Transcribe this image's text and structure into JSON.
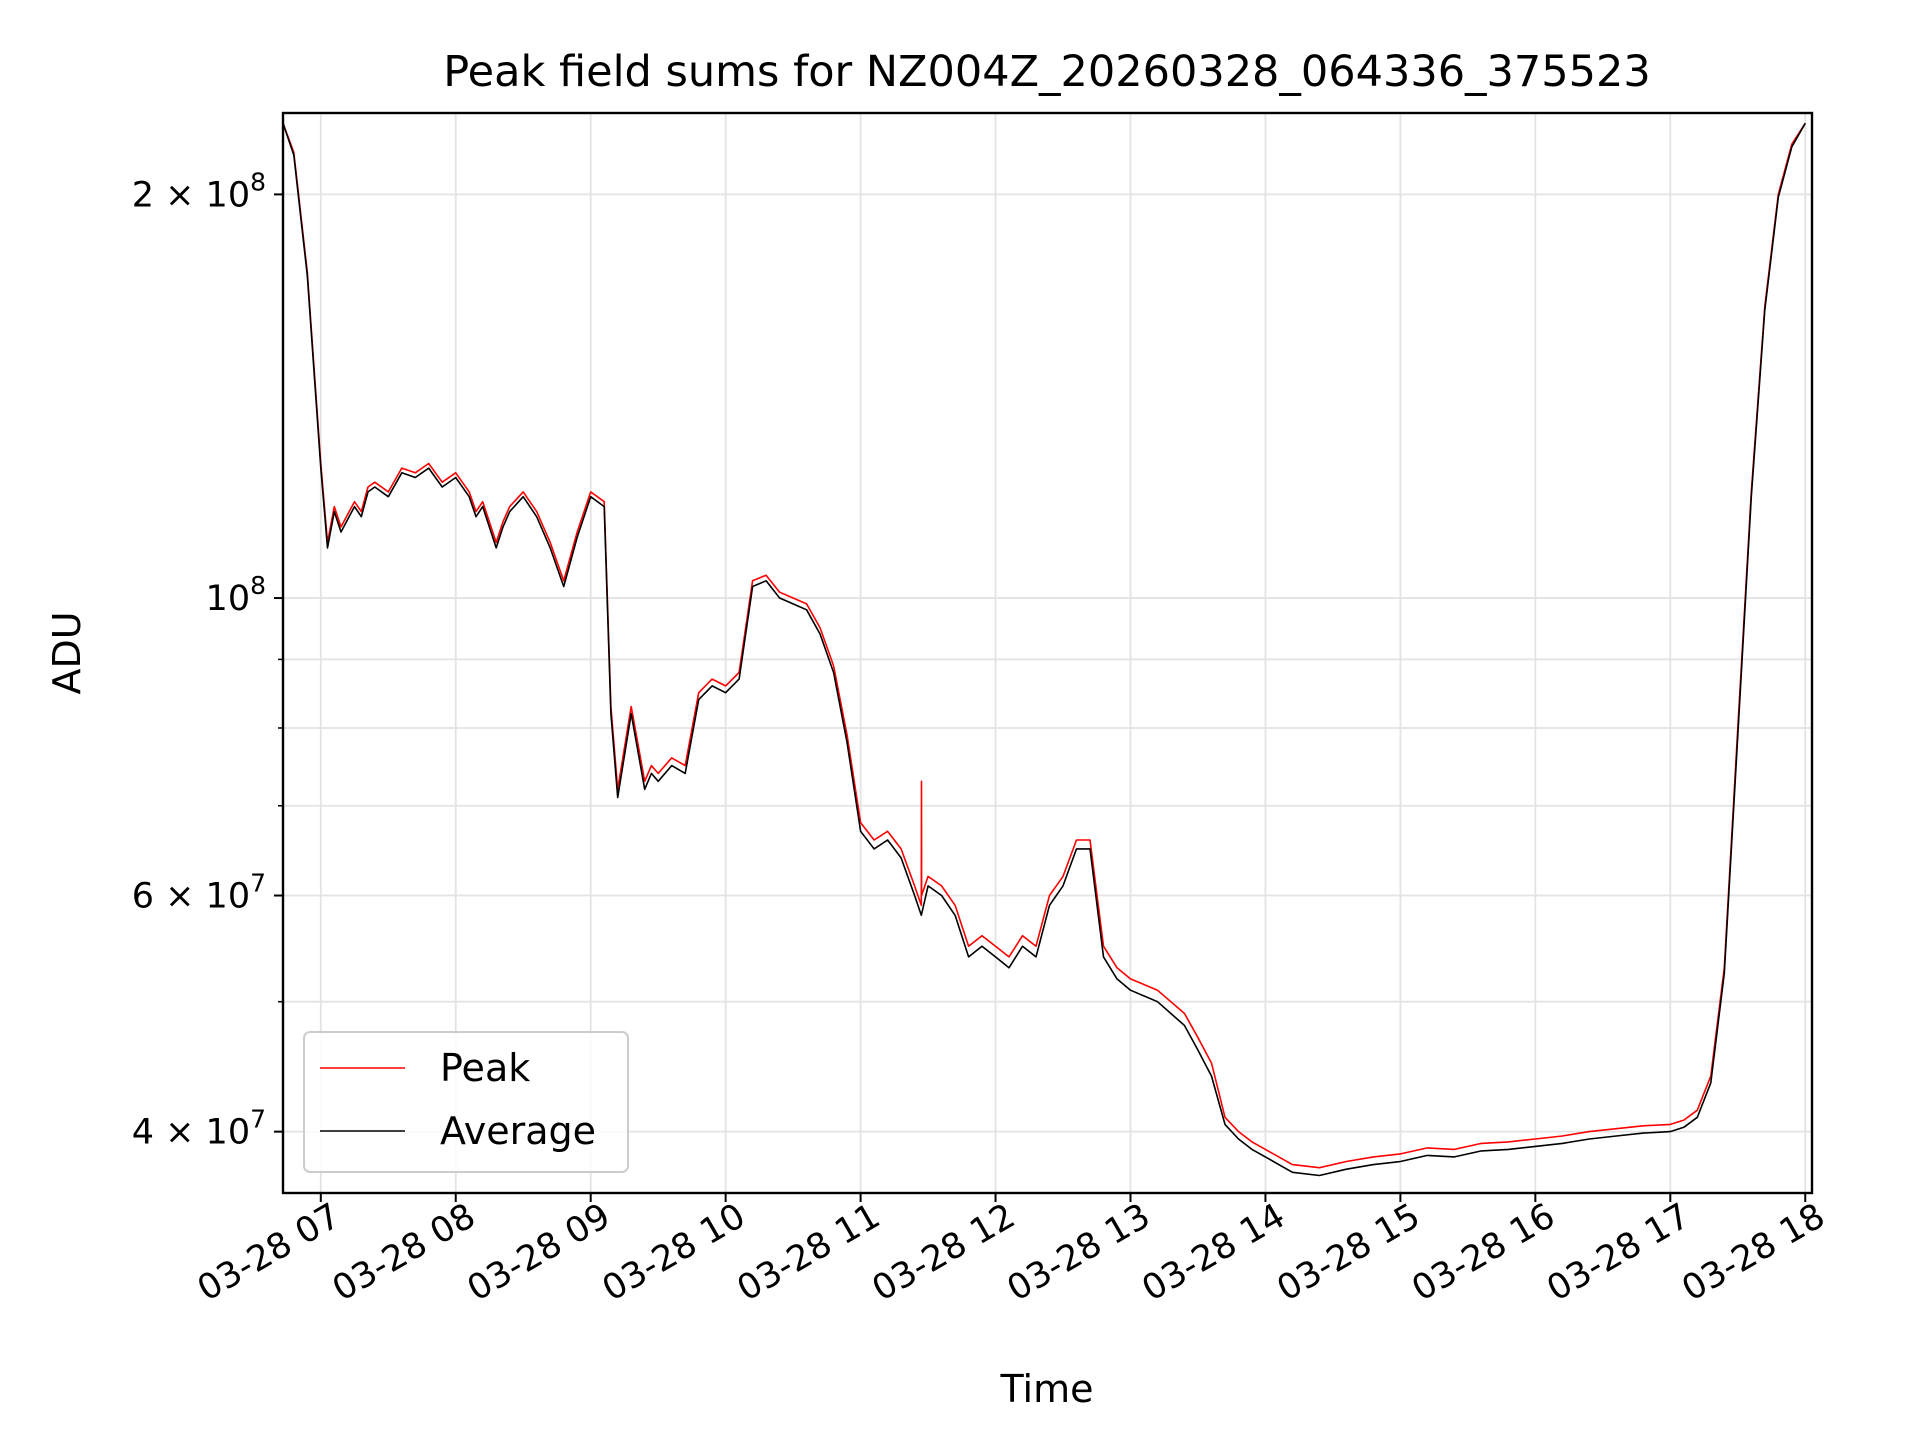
{
  "chart_data": {
    "type": "line",
    "title": "Peak field sums for NZ004Z_20260328_064336_375523",
    "xlabel": "Time",
    "ylabel": "ADU",
    "yscale": "log",
    "grid": true,
    "legend_position": "lower-left",
    "x_unit": "hours since 03-28 00:00",
    "xlim": [
      6.72,
      18.05
    ],
    "ylim": [
      36000000,
      230000000
    ],
    "x_ticks": [
      {
        "value": 7,
        "label": "03-28 07"
      },
      {
        "value": 8,
        "label": "03-28 08"
      },
      {
        "value": 9,
        "label": "03-28 09"
      },
      {
        "value": 10,
        "label": "03-28 10"
      },
      {
        "value": 11,
        "label": "03-28 11"
      },
      {
        "value": 12,
        "label": "03-28 12"
      },
      {
        "value": 13,
        "label": "03-28 13"
      },
      {
        "value": 14,
        "label": "03-28 14"
      },
      {
        "value": 15,
        "label": "03-28 15"
      },
      {
        "value": 16,
        "label": "03-28 16"
      },
      {
        "value": 17,
        "label": "03-28 17"
      },
      {
        "value": 18,
        "label": "03-28 18"
      }
    ],
    "y_major_ticks": [
      {
        "value": 200000000,
        "mantissa": "2",
        "exponent": "8"
      },
      {
        "value": 100000000,
        "mantissa": "",
        "exponent": "8"
      },
      {
        "value": 60000000,
        "mantissa": "6",
        "exponent": "7"
      },
      {
        "value": 40000000,
        "mantissa": "4",
        "exponent": "7"
      }
    ],
    "y_minor_ticks": [
      50000000,
      70000000,
      80000000,
      90000000
    ],
    "series": [
      {
        "name": "Peak",
        "color": "#ff0000",
        "x": [
          6.72,
          6.8,
          6.9,
          7.0,
          7.05,
          7.1,
          7.15,
          7.25,
          7.3,
          7.35,
          7.4,
          7.5,
          7.6,
          7.7,
          7.75,
          7.8,
          7.9,
          8.0,
          8.1,
          8.15,
          8.2,
          8.3,
          8.35,
          8.4,
          8.5,
          8.6,
          8.7,
          8.8,
          8.9,
          9.0,
          9.1,
          9.15,
          9.2,
          9.3,
          9.4,
          9.45,
          9.5,
          9.6,
          9.7,
          9.8,
          9.9,
          10.0,
          10.1,
          10.2,
          10.3,
          10.4,
          10.5,
          10.6,
          10.7,
          10.8,
          10.9,
          11.0,
          11.1,
          11.2,
          11.3,
          11.4,
          11.45,
          11.451,
          11.452,
          11.5,
          11.6,
          11.7,
          11.8,
          11.9,
          12.0,
          12.1,
          12.2,
          12.3,
          12.4,
          12.5,
          12.6,
          12.7,
          12.8,
          12.9,
          13.0,
          13.2,
          13.4,
          13.5,
          13.6,
          13.7,
          13.8,
          13.9,
          14.0,
          14.2,
          14.4,
          14.6,
          14.8,
          15.0,
          15.2,
          15.4,
          15.6,
          15.8,
          16.0,
          16.2,
          16.4,
          16.6,
          16.8,
          17.0,
          17.1,
          17.2,
          17.3,
          17.4,
          17.5,
          17.6,
          17.7,
          17.8,
          17.9,
          18.0
        ],
        "y": [
          226000000,
          215000000,
          175000000,
          126000000,
          110000000,
          117000000,
          113000000,
          118000000,
          116000000,
          121000000,
          122000000,
          120000000,
          125000000,
          124000000,
          125000000,
          126000000,
          122000000,
          124000000,
          120000000,
          116000000,
          118000000,
          110000000,
          114000000,
          117000000,
          120000000,
          116000000,
          110000000,
          103000000,
          112000000,
          120000000,
          118000000,
          83000000,
          72000000,
          83000000,
          73000000,
          75000000,
          74000000,
          76000000,
          75000000,
          85000000,
          87000000,
          86000000,
          88000000,
          103000000,
          104000000,
          101000000,
          100000000,
          99000000,
          95000000,
          89000000,
          79000000,
          68000000,
          66000000,
          67000000,
          65000000,
          61000000,
          59000000,
          73000000,
          60000000,
          62000000,
          61000000,
          59000000,
          55000000,
          56000000,
          55000000,
          54000000,
          56000000,
          55000000,
          60000000,
          62000000,
          66000000,
          66000000,
          55000000,
          53000000,
          52000000,
          51000000,
          49000000,
          47000000,
          45000000,
          41000000,
          40000000,
          39300000,
          38800000,
          37800000,
          37600000,
          38000000,
          38300000,
          38500000,
          38900000,
          38800000,
          39200000,
          39300000,
          39500000,
          39700000,
          40000000,
          40200000,
          40400000,
          40500000,
          40800000,
          41500000,
          44000000,
          53000000,
          80000000,
          120000000,
          165000000,
          200000000,
          218000000,
          226000000
        ]
      },
      {
        "name": "Average",
        "color": "#000000",
        "x": [
          6.72,
          6.8,
          6.9,
          7.0,
          7.05,
          7.1,
          7.15,
          7.25,
          7.3,
          7.35,
          7.4,
          7.5,
          7.6,
          7.7,
          7.75,
          7.8,
          7.9,
          8.0,
          8.1,
          8.15,
          8.2,
          8.3,
          8.35,
          8.4,
          8.5,
          8.6,
          8.7,
          8.8,
          8.9,
          9.0,
          9.1,
          9.15,
          9.2,
          9.3,
          9.4,
          9.45,
          9.5,
          9.6,
          9.7,
          9.8,
          9.9,
          10.0,
          10.1,
          10.2,
          10.3,
          10.4,
          10.5,
          10.6,
          10.7,
          10.8,
          10.9,
          11.0,
          11.1,
          11.2,
          11.3,
          11.4,
          11.45,
          11.5,
          11.6,
          11.7,
          11.8,
          11.9,
          12.0,
          12.1,
          12.2,
          12.3,
          12.4,
          12.5,
          12.6,
          12.7,
          12.8,
          12.9,
          13.0,
          13.2,
          13.4,
          13.5,
          13.6,
          13.7,
          13.8,
          13.9,
          14.0,
          14.2,
          14.4,
          14.6,
          14.8,
          15.0,
          15.2,
          15.4,
          15.6,
          15.8,
          16.0,
          16.2,
          16.4,
          16.6,
          16.8,
          17.0,
          17.1,
          17.2,
          17.3,
          17.4,
          17.5,
          17.6,
          17.7,
          17.8,
          17.9,
          18.0
        ],
        "y": [
          226000000,
          214000000,
          174000000,
          125000000,
          109000000,
          116000000,
          112000000,
          117000000,
          115000000,
          120000000,
          121000000,
          119000000,
          124000000,
          123000000,
          124000000,
          125000000,
          121000000,
          123000000,
          119000000,
          115000000,
          117000000,
          109000000,
          113000000,
          116000000,
          119000000,
          115000000,
          109000000,
          102000000,
          111000000,
          119000000,
          117000000,
          82000000,
          71000000,
          82000000,
          72000000,
          74000000,
          73000000,
          75000000,
          74000000,
          84000000,
          86000000,
          85000000,
          87000000,
          102000000,
          103000000,
          100000000,
          99000000,
          98000000,
          94000000,
          88000000,
          78000000,
          67000000,
          65000000,
          66000000,
          64000000,
          60000000,
          58000000,
          61000000,
          60000000,
          58000000,
          54000000,
          55000000,
          54000000,
          53000000,
          55000000,
          54000000,
          59000000,
          61000000,
          65000000,
          65000000,
          54000000,
          52000000,
          51000000,
          50000000,
          48000000,
          46000000,
          44000000,
          40500000,
          39500000,
          38800000,
          38300000,
          37300000,
          37100000,
          37500000,
          37800000,
          38000000,
          38400000,
          38300000,
          38700000,
          38800000,
          39000000,
          39200000,
          39500000,
          39700000,
          39900000,
          40000000,
          40300000,
          41000000,
          43500000,
          52500000,
          79000000,
          119000000,
          164000000,
          199000000,
          217000000,
          226000000
        ]
      }
    ]
  }
}
